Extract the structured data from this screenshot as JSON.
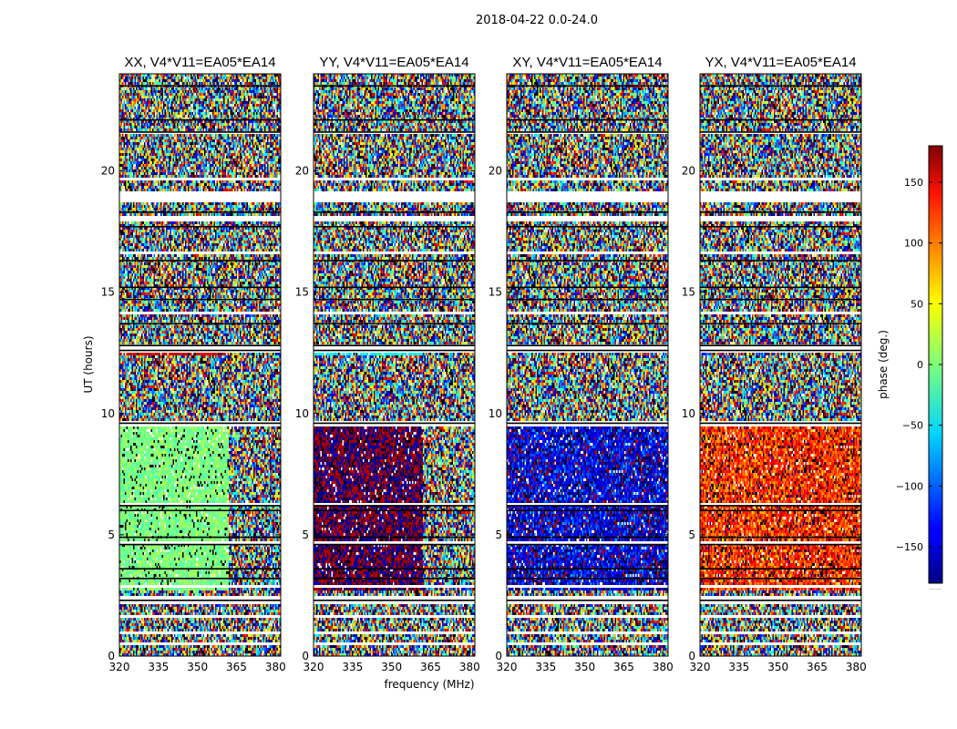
{
  "figure_title": "2018-04-22 0.0-24.0",
  "chart_data": {
    "type": "heatmap",
    "title": "2018-04-22 0.0-24.0",
    "xlabel": "frequency (MHz)",
    "ylabel": "UT (hours)",
    "xlim": [
      320,
      382
    ],
    "ylim": [
      0,
      24
    ],
    "x_ticks": [
      320,
      335,
      350,
      365,
      380
    ],
    "y_ticks": [
      0,
      5,
      10,
      15,
      20
    ],
    "colorbar": {
      "label": "phase (deg.)",
      "range": [
        -180,
        180
      ],
      "ticks": [
        150,
        100,
        50,
        0,
        -50,
        -100,
        -150
      ],
      "tick_labels": [
        "150",
        "100",
        "50",
        "0",
        "−50",
        "−100",
        "−150"
      ],
      "colormap": "jet",
      "caption": "......"
    },
    "panels": [
      {
        "title": "XX, V4*V11=EA05*EA14",
        "polarization": "XX",
        "coherent_phase_mean": 0,
        "coherent_phase_spread": 45,
        "coherent_freq_cutoff": 362,
        "coherent_ut_range": [
          2.7,
          9.6
        ],
        "noisy_patch": {
          "ut_range": [
            12.4,
            12.9
          ],
          "freq_max": 362,
          "phase": 150
        }
      },
      {
        "title": "YY, V4*V11=EA05*EA14",
        "polarization": "YY",
        "coherent_phase_mean": 180,
        "coherent_phase_spread": 50,
        "coherent_freq_cutoff": 362,
        "coherent_ut_range": [
          2.7,
          9.6
        ],
        "noisy_patch": {
          "ut_range": [
            12.4,
            12.9
          ],
          "freq_max": 362,
          "phase": -45
        }
      },
      {
        "title": "XY, V4*V11=EA05*EA14",
        "polarization": "XY",
        "coherent_phase_mean": -140,
        "coherent_phase_spread": 110,
        "coherent_freq_cutoff": 382,
        "coherent_ut_range": [
          2.7,
          9.6
        ]
      },
      {
        "title": "YX, V4*V11=EA05*EA14",
        "polarization": "YX",
        "coherent_phase_mean": 120,
        "coherent_phase_spread": 110,
        "coherent_freq_cutoff": 382,
        "coherent_ut_range": [
          2.7,
          9.6
        ]
      }
    ],
    "flagged_ut_bands": [
      [
        0.45,
        0.6
      ],
      [
        0.85,
        1.05
      ],
      [
        1.55,
        1.65
      ],
      [
        2.15,
        2.45
      ],
      [
        2.8,
        2.9
      ],
      [
        3.55,
        3.65
      ],
      [
        4.65,
        4.75
      ],
      [
        6.2,
        6.3
      ],
      [
        9.5,
        9.65
      ],
      [
        12.55,
        12.85
      ],
      [
        14.05,
        14.15
      ],
      [
        15.95,
        16.05
      ],
      [
        16.55,
        16.65
      ],
      [
        17.9,
        18.1
      ],
      [
        18.75,
        19.2
      ],
      [
        19.6,
        19.7
      ],
      [
        21.5,
        21.6
      ],
      [
        23.5,
        23.6
      ]
    ],
    "black_ut_lines": [
      2.3,
      3.2,
      3.6,
      4.6,
      4.9,
      6.0,
      6.2,
      9.6,
      12.6,
      12.8,
      13.7,
      14.7,
      15.2,
      16.3,
      17.7,
      18.3,
      21.6,
      22.1,
      23.5
    ]
  }
}
